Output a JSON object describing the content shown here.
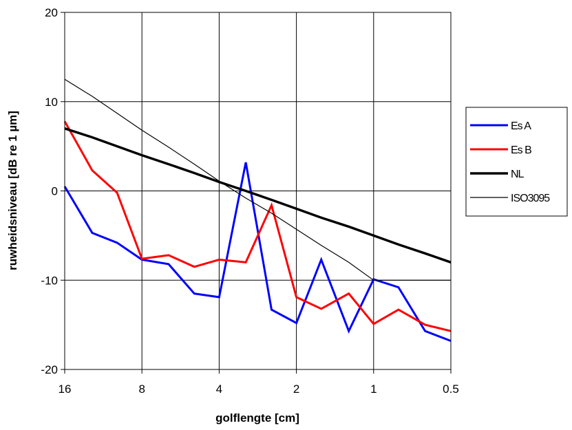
{
  "chart_data": {
    "type": "line",
    "xlabel": "golflengte [cm]",
    "ylabel": "ruwheidsniveau [dB re 1 µm]",
    "x_ticks": [
      "16",
      "8",
      "4",
      "2",
      "1",
      "0.5"
    ],
    "ylim": [
      -20,
      20
    ],
    "y_ticks": [
      -20,
      -10,
      0,
      10,
      20
    ],
    "x_scale": "log2, decreasing",
    "grid": true,
    "legend_position": "right",
    "x": [
      16,
      12.5,
      10,
      8,
      6.3,
      5,
      4,
      3.15,
      2.5,
      2,
      1.6,
      1.25,
      1,
      0.8,
      0.63,
      0.5
    ],
    "series": [
      {
        "name": "Es A",
        "color": "#0000ff",
        "width": 3,
        "values": [
          0.5,
          -4.7,
          -5.8,
          -7.7,
          -8.2,
          -11.5,
          -11.9,
          3.2,
          -13.3,
          -14.8,
          -7.7,
          -15.7,
          -9.9,
          -10.8,
          -15.7,
          -16.8
        ]
      },
      {
        "name": "Es B",
        "color": "#ff0000",
        "width": 3,
        "values": [
          7.8,
          2.3,
          -0.2,
          -7.6,
          -7.2,
          -8.5,
          -7.7,
          -8.0,
          -1.6,
          -11.9,
          -13.2,
          -11.5,
          -14.9,
          -13.3,
          -15.0,
          -15.7
        ]
      },
      {
        "name": "NL",
        "color": "#000000",
        "width": 3.5,
        "values": [
          7,
          6,
          5,
          4,
          3,
          2,
          1,
          0,
          -1,
          -2,
          -3,
          -4,
          -5,
          -6,
          -7,
          -8
        ]
      },
      {
        "name": "ISO3095",
        "color": "#000000",
        "width": 1.2,
        "values": [
          12.5,
          10.6,
          8.7,
          6.8,
          4.9,
          3.0,
          1.1,
          -0.8,
          -2.5,
          -4.3,
          -6.1,
          -8.0,
          -10.0,
          -10.0,
          -10.0,
          -10.0
        ]
      }
    ]
  }
}
